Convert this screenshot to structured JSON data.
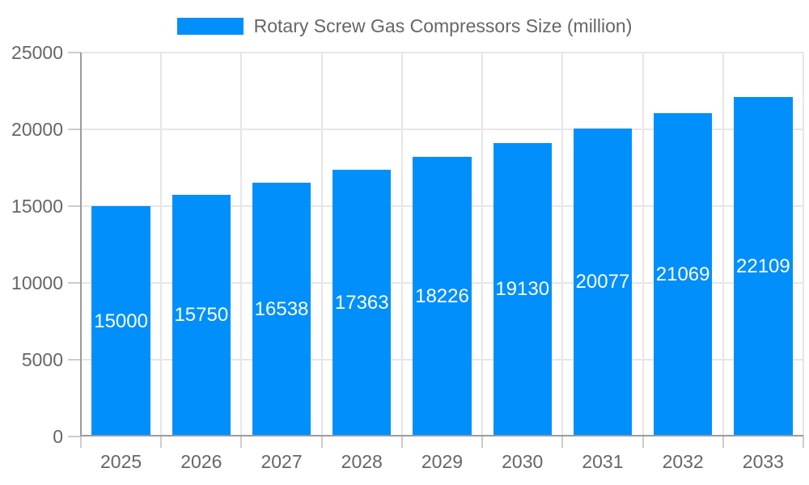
{
  "legend": {
    "label": "Rotary Screw Gas Compressors Size (million)"
  },
  "chart_data": {
    "type": "bar",
    "title": "Rotary Screw Gas Compressors Size (million)",
    "categories": [
      "2025",
      "2026",
      "2027",
      "2028",
      "2029",
      "2030",
      "2031",
      "2032",
      "2033"
    ],
    "series": [
      {
        "name": "Rotary Screw Gas Compressors Size (million)",
        "values": [
          15000,
          15750,
          16538,
          17363,
          18226,
          19130,
          20077,
          21069,
          22109
        ]
      }
    ],
    "value_labels": [
      "15000",
      "15750",
      "16538",
      "17363",
      "18226",
      "19130",
      "20077",
      "21069",
      "22109"
    ],
    "xlabel": "",
    "ylabel": "",
    "ylim": [
      0,
      25000
    ],
    "yticks": [
      0,
      5000,
      10000,
      15000,
      20000,
      25000
    ],
    "grid": true,
    "legend_position": "top"
  },
  "colors": {
    "bar": "#008FFB",
    "value_label_text": "#ffffff",
    "axis_text": "#666666",
    "grid_line": "#e6e6e6",
    "axis_line": "#9b9b9b",
    "tick_mark": "#cccccc",
    "background": "#ffffff"
  }
}
